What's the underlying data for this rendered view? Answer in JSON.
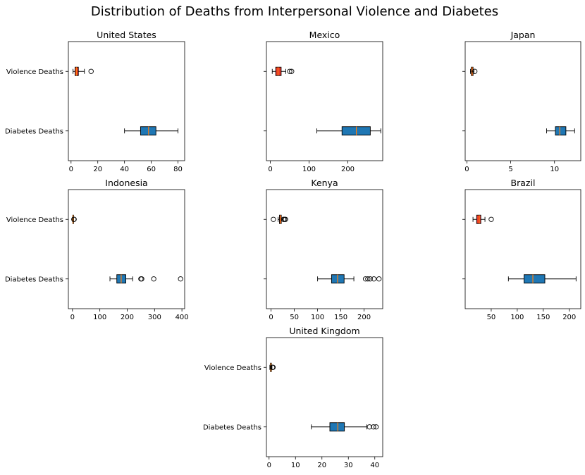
{
  "title": "Distribution of Deaths from Interpersonal Violence and Diabetes",
  "colors": {
    "violence": "#e8382a",
    "diabetes": "#1f77b4",
    "median": "#ff7f0e"
  },
  "category_labels": [
    "Violence Deaths",
    "Diabetes Deaths"
  ],
  "chart_data": [
    {
      "type": "boxplot",
      "title": "United States",
      "orientation": "horizontal",
      "categories": [
        "Violence Deaths",
        "Diabetes Deaths"
      ],
      "xlim": [
        -2,
        85
      ],
      "xticks": [
        0,
        20,
        40,
        60,
        80
      ],
      "boxes": [
        {
          "name": "Violence Deaths",
          "whislo": 1.5,
          "q1": 3,
          "med": 4,
          "q3": 5.5,
          "whishi": 10,
          "fliers": [
            15
          ]
        },
        {
          "name": "Diabetes Deaths",
          "whislo": 40,
          "q1": 52,
          "med": 58,
          "q3": 63.5,
          "whishi": 80,
          "fliers": []
        }
      ]
    },
    {
      "type": "boxplot",
      "title": "Mexico",
      "orientation": "horizontal",
      "categories": [
        "Violence Deaths",
        "Diabetes Deaths"
      ],
      "xlim": [
        -10,
        290
      ],
      "xticks": [
        0,
        100,
        200
      ],
      "boxes": [
        {
          "name": "Violence Deaths",
          "whislo": 5,
          "q1": 14,
          "med": 20,
          "q3": 28,
          "whishi": 40,
          "fliers": [
            50,
            55
          ]
        },
        {
          "name": "Diabetes Deaths",
          "whislo": 120,
          "q1": 185,
          "med": 222,
          "q3": 258,
          "whishi": 285,
          "fliers": []
        }
      ]
    },
    {
      "type": "boxplot",
      "title": "Japan",
      "orientation": "horizontal",
      "categories": [
        "Violence Deaths",
        "Diabetes Deaths"
      ],
      "xlim": [
        -0.2,
        13
      ],
      "xticks": [
        0,
        5,
        10
      ],
      "boxes": [
        {
          "name": "Violence Deaths",
          "whislo": 0.4,
          "q1": 0.5,
          "med": 0.6,
          "q3": 0.7,
          "whishi": 0.8,
          "fliers": [
            0.9
          ]
        },
        {
          "name": "Diabetes Deaths",
          "whislo": 9.1,
          "q1": 10.1,
          "med": 10.6,
          "q3": 11.3,
          "whishi": 12.3,
          "fliers": []
        }
      ]
    },
    {
      "type": "boxplot",
      "title": "Indonesia",
      "orientation": "horizontal",
      "categories": [
        "Violence Deaths",
        "Diabetes Deaths"
      ],
      "xlim": [
        -15,
        410
      ],
      "xticks": [
        0,
        100,
        200,
        300,
        400
      ],
      "boxes": [
        {
          "name": "Violence Deaths",
          "whislo": 0,
          "q1": 1,
          "med": 2,
          "q3": 3,
          "whishi": 4,
          "fliers": [
            5,
            6
          ]
        },
        {
          "name": "Diabetes Deaths",
          "whislo": 137,
          "q1": 162,
          "med": 178,
          "q3": 195,
          "whishi": 220,
          "fliers": [
            250,
            253,
            297,
            395
          ]
        }
      ]
    },
    {
      "type": "boxplot",
      "title": "Kenya",
      "orientation": "horizontal",
      "categories": [
        "Violence Deaths",
        "Diabetes Deaths"
      ],
      "xlim": [
        -10,
        240
      ],
      "xticks": [
        0,
        50,
        100,
        150,
        200
      ],
      "boxes": [
        {
          "name": "Violence Deaths",
          "whislo": 15,
          "q1": 18,
          "med": 20,
          "q3": 22,
          "whishi": 25,
          "fliers": [
            5,
            27,
            29,
            31
          ]
        },
        {
          "name": "Diabetes Deaths",
          "whislo": 100,
          "q1": 130,
          "med": 143,
          "q3": 157,
          "whishi": 178,
          "fliers": [
            203,
            208,
            213,
            221,
            232
          ]
        }
      ]
    },
    {
      "type": "boxplot",
      "title": "Brazil",
      "orientation": "horizontal",
      "categories": [
        "Violence Deaths",
        "Diabetes Deaths"
      ],
      "xlim": [
        0,
        222
      ],
      "xticks": [
        50,
        100,
        150,
        200
      ],
      "boxes": [
        {
          "name": "Violence Deaths",
          "whislo": 15,
          "q1": 22,
          "med": 27,
          "q3": 30,
          "whishi": 38,
          "fliers": [
            50
          ]
        },
        {
          "name": "Diabetes Deaths",
          "whislo": 83,
          "q1": 113,
          "med": 130,
          "q3": 153,
          "whishi": 213,
          "fliers": []
        }
      ]
    },
    {
      "type": "boxplot",
      "title": "United Kingdom",
      "orientation": "horizontal",
      "categories": [
        "Violence Deaths",
        "Diabetes Deaths"
      ],
      "xlim": [
        -1,
        43
      ],
      "xticks": [
        0,
        10,
        20,
        30,
        40
      ],
      "boxes": [
        {
          "name": "Violence Deaths",
          "whislo": 0.3,
          "q1": 0.5,
          "med": 0.7,
          "q3": 0.9,
          "whishi": 1.1,
          "fliers": [
            1.3,
            1.5
          ]
        },
        {
          "name": "Diabetes Deaths",
          "whislo": 16,
          "q1": 23,
          "med": 26,
          "q3": 28.5,
          "whishi": 37,
          "fliers": [
            38,
            39.5,
            40.5
          ]
        }
      ]
    }
  ]
}
